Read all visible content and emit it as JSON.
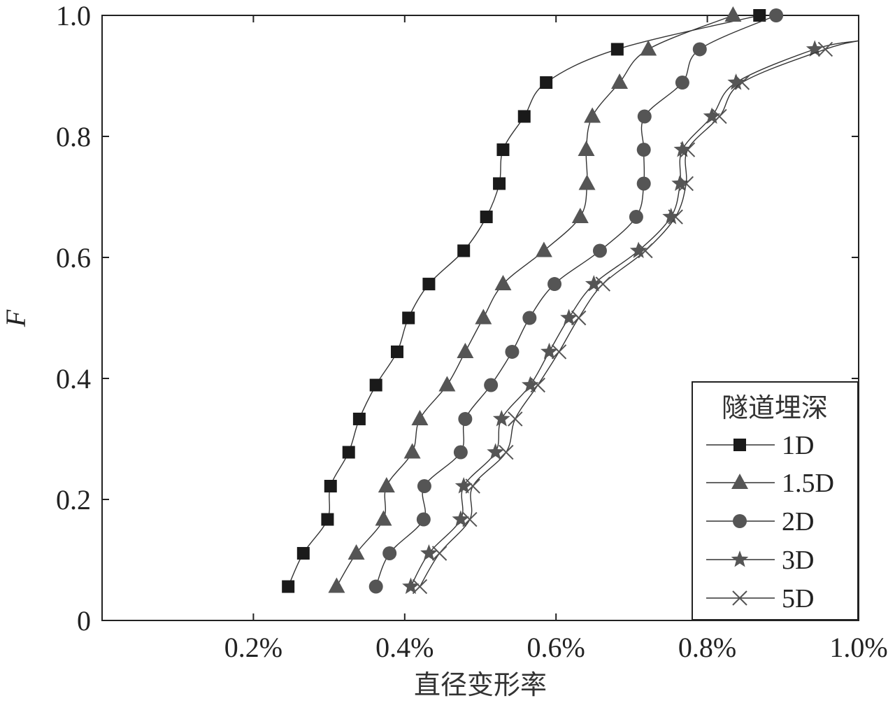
{
  "chart_data": {
    "type": "line",
    "xlabel": "直径变形率",
    "ylabel": "F",
    "xlim": [
      0.0,
      1.0
    ],
    "ylim": [
      0,
      1.0
    ],
    "x_unit": "%",
    "x_tick_labels": [
      "0.2%",
      "0.4%",
      "0.6%",
      "0.8%",
      "1.0%"
    ],
    "y_tick_labels": [
      "0",
      "0.2",
      "0.4",
      "0.6",
      "0.8",
      "1.0"
    ],
    "legend_title": "隧道埋深",
    "legend_position": "bottom-right",
    "grid": false,
    "series": [
      {
        "name": "1D",
        "marker": "square",
        "color": "#1a1a1a",
        "x": [
          0.246,
          0.266,
          0.298,
          0.302,
          0.326,
          0.34,
          0.362,
          0.39,
          0.405,
          0.432,
          0.478,
          0.508,
          0.525,
          0.53,
          0.558,
          0.587,
          0.681,
          0.869
        ],
        "y": [
          0.056,
          0.111,
          0.167,
          0.222,
          0.278,
          0.333,
          0.389,
          0.444,
          0.5,
          0.556,
          0.611,
          0.667,
          0.722,
          0.778,
          0.833,
          0.889,
          0.944,
          1.0
        ]
      },
      {
        "name": "1.5D",
        "marker": "triangle",
        "color": "#555555",
        "x": [
          0.31,
          0.336,
          0.372,
          0.376,
          0.41,
          0.42,
          0.456,
          0.48,
          0.504,
          0.53,
          0.584,
          0.632,
          0.641,
          0.64,
          0.648,
          0.684,
          0.722,
          0.834
        ],
        "y": [
          0.056,
          0.111,
          0.167,
          0.222,
          0.278,
          0.333,
          0.389,
          0.444,
          0.5,
          0.556,
          0.611,
          0.667,
          0.722,
          0.778,
          0.833,
          0.889,
          0.944,
          1.0
        ]
      },
      {
        "name": "2D",
        "marker": "circle",
        "color": "#555555",
        "x": [
          0.362,
          0.38,
          0.425,
          0.426,
          0.474,
          0.48,
          0.514,
          0.542,
          0.565,
          0.598,
          0.658,
          0.706,
          0.716,
          0.716,
          0.717,
          0.767,
          0.79,
          0.891
        ],
        "y": [
          0.056,
          0.111,
          0.167,
          0.222,
          0.278,
          0.333,
          0.389,
          0.444,
          0.5,
          0.556,
          0.611,
          0.667,
          0.722,
          0.778,
          0.833,
          0.889,
          0.944,
          1.0
        ]
      },
      {
        "name": "3D",
        "marker": "star",
        "color": "#555555",
        "x": [
          0.408,
          0.432,
          0.474,
          0.478,
          0.52,
          0.528,
          0.566,
          0.591,
          0.617,
          0.65,
          0.709,
          0.752,
          0.764,
          0.767,
          0.806,
          0.838,
          0.942
        ],
        "y": [
          0.056,
          0.111,
          0.167,
          0.222,
          0.278,
          0.333,
          0.389,
          0.444,
          0.5,
          0.556,
          0.611,
          0.667,
          0.722,
          0.778,
          0.833,
          0.889,
          0.944
        ]
      },
      {
        "name": "5D",
        "marker": "cross",
        "color": "#555555",
        "x": [
          0.42,
          0.446,
          0.486,
          0.49,
          0.534,
          0.546,
          0.576,
          0.604,
          0.63,
          0.662,
          0.718,
          0.758,
          0.772,
          0.774,
          0.816,
          0.846,
          0.956
        ],
        "y": [
          0.056,
          0.111,
          0.167,
          0.222,
          0.278,
          0.333,
          0.389,
          0.444,
          0.5,
          0.556,
          0.611,
          0.667,
          0.722,
          0.778,
          0.833,
          0.889,
          0.944
        ]
      }
    ]
  }
}
